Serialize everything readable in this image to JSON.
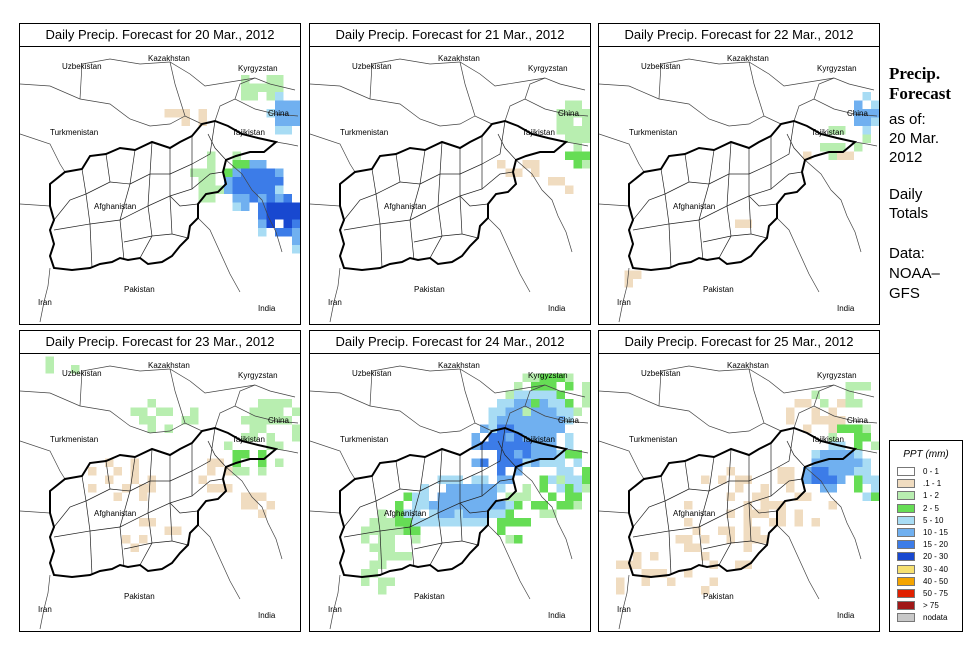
{
  "panels": [
    {
      "title": "Daily Precip. Forecast for  20 Mar., 2012"
    },
    {
      "title": "Daily Precip. Forecast for  21 Mar., 2012"
    },
    {
      "title": "Daily Precip. Forecast for  22 Mar., 2012"
    },
    {
      "title": "Daily Precip. Forecast for  23 Mar., 2012"
    },
    {
      "title": "Daily Precip. Forecast for  24 Mar., 2012"
    },
    {
      "title": "Daily Precip. Forecast for  25 Mar., 2012"
    }
  ],
  "map_labels": {
    "uzbekistan": "Uzbekistan",
    "kazakhstan": "Kazakhstan",
    "kyrgyzstan": "Kyrgyzstan",
    "china": "China",
    "turkmenistan": "Turkmenistan",
    "tajikistan": "Tajikistan",
    "afghanistan": "Afghanistan",
    "pakistan": "Pakistan",
    "iran": "Iran",
    "india": "India"
  },
  "side": {
    "heading1": "Precip.",
    "heading2": "Forecast",
    "asof1": "as of:",
    "asof2": "20 Mar.",
    "asof3": "2012",
    "daily1": "Daily",
    "daily2": "Totals",
    "data1": "Data:",
    "data2": "NOAA–",
    "data3": "GFS"
  },
  "legend": {
    "title": "PPT (mm)",
    "items": [
      {
        "label": "0 - 1",
        "color": "#ffffff"
      },
      {
        "label": ".1 - 1",
        "color": "#f0dcc0"
      },
      {
        "label": "1 - 2",
        "color": "#b8eeb0"
      },
      {
        "label": "2 - 5",
        "color": "#66dd55"
      },
      {
        "label": "5 - 10",
        "color": "#a8dcf4"
      },
      {
        "label": "10 - 15",
        "color": "#70b0f0"
      },
      {
        "label": "15 - 20",
        "color": "#3c7ce8"
      },
      {
        "label": "20 - 30",
        "color": "#1848d0"
      },
      {
        "label": "30 - 40",
        "color": "#f6e070"
      },
      {
        "label": "40 - 50",
        "color": "#f4a400"
      },
      {
        "label": "50 - 75",
        "color": "#e02000"
      },
      {
        "label": "> 75",
        "color": "#a01818"
      },
      {
        "label": "nodata",
        "color": "#c8c8c8"
      }
    ]
  }
}
